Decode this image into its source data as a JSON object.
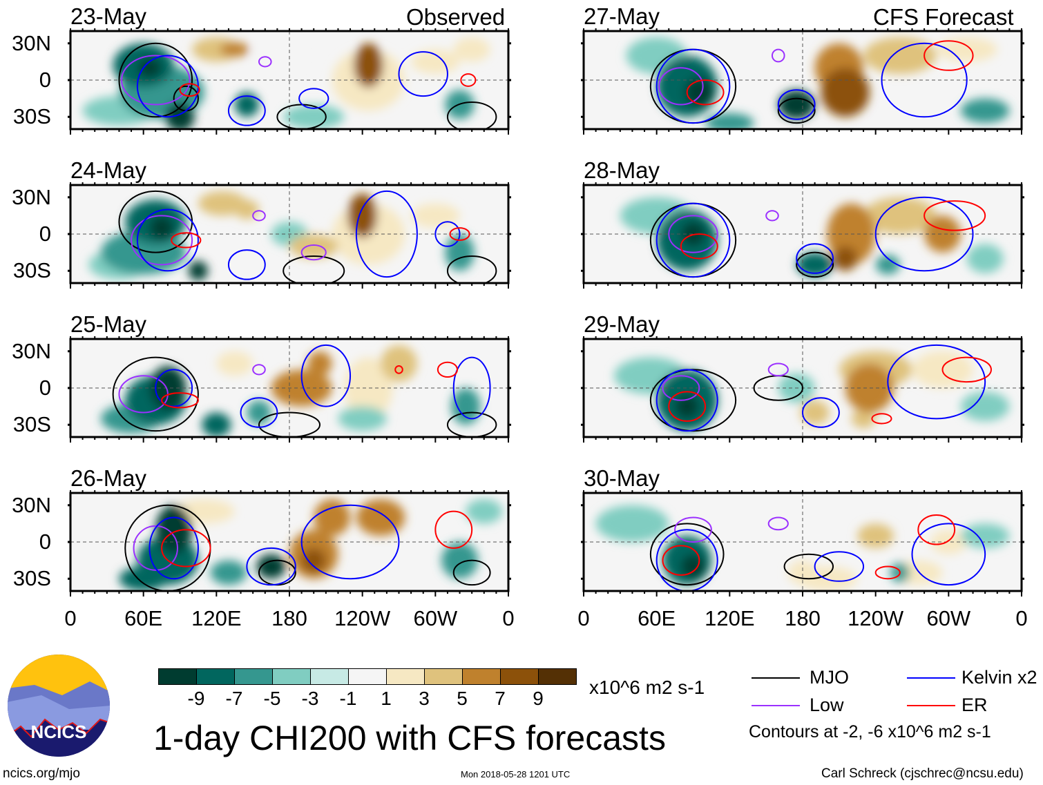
{
  "header": {
    "left_title": "Observed",
    "right_title": "CFS Forecast"
  },
  "lat_labels": [
    "30N",
    "0",
    "30S"
  ],
  "lon_labels": [
    "0",
    "60E",
    "120E",
    "180",
    "120W",
    "60W",
    "0"
  ],
  "panels": [
    {
      "date": "23-May",
      "column": "observed",
      "blobs": [
        [
          60,
          12,
          25,
          18,
          -7
        ],
        [
          75,
          -10,
          35,
          22,
          -5
        ],
        [
          65,
          10,
          10,
          8,
          -9
        ],
        [
          90,
          -30,
          12,
          12,
          -9
        ],
        [
          40,
          -25,
          30,
          12,
          -3
        ],
        [
          145,
          -20,
          10,
          10,
          -7
        ],
        [
          200,
          -30,
          25,
          10,
          -3
        ],
        [
          120,
          25,
          20,
          10,
          5
        ],
        [
          135,
          25,
          12,
          6,
          7
        ],
        [
          245,
          12,
          12,
          18,
          9
        ],
        [
          245,
          0,
          30,
          25,
          3
        ],
        [
          300,
          15,
          20,
          10,
          3
        ],
        [
          330,
          25,
          15,
          10,
          3
        ],
        [
          320,
          -20,
          12,
          12,
          -5
        ],
        [
          170,
          20,
          20,
          15,
          1
        ]
      ],
      "contours": [
        [
          70,
          0,
          30,
          30,
          "mjo"
        ],
        [
          95,
          -15,
          10,
          10,
          "mjo"
        ],
        [
          190,
          -30,
          20,
          10,
          "mjo"
        ],
        [
          330,
          -30,
          20,
          12,
          "mjo"
        ],
        [
          70,
          0,
          28,
          20,
          "low"
        ],
        [
          160,
          15,
          5,
          4,
          "low"
        ],
        [
          80,
          -5,
          25,
          25,
          "kelvin"
        ],
        [
          145,
          -25,
          15,
          12,
          "kelvin"
        ],
        [
          200,
          -15,
          12,
          8,
          "kelvin"
        ],
        [
          290,
          5,
          20,
          18,
          "kelvin"
        ],
        [
          98,
          -8,
          8,
          5,
          "er"
        ],
        [
          327,
          0,
          6,
          5,
          "er"
        ]
      ]
    },
    {
      "date": "24-May",
      "column": "observed",
      "blobs": [
        [
          70,
          10,
          25,
          18,
          -7
        ],
        [
          75,
          5,
          10,
          10,
          -9
        ],
        [
          60,
          -15,
          35,
          18,
          -5
        ],
        [
          105,
          -30,
          8,
          8,
          -9
        ],
        [
          40,
          -25,
          25,
          12,
          -3
        ],
        [
          125,
          25,
          20,
          10,
          5
        ],
        [
          145,
          20,
          10,
          8,
          5
        ],
        [
          200,
          -10,
          20,
          10,
          5
        ],
        [
          240,
          15,
          12,
          18,
          9
        ],
        [
          245,
          0,
          30,
          25,
          3
        ],
        [
          320,
          -15,
          12,
          15,
          -5
        ],
        [
          300,
          15,
          20,
          10,
          3
        ],
        [
          180,
          0,
          15,
          10,
          -3
        ]
      ],
      "contours": [
        [
          70,
          10,
          30,
          25,
          "mjo"
        ],
        [
          200,
          -30,
          25,
          12,
          "mjo"
        ],
        [
          330,
          -30,
          20,
          12,
          "mjo"
        ],
        [
          75,
          -5,
          25,
          20,
          "low"
        ],
        [
          155,
          15,
          5,
          4,
          "low"
        ],
        [
          200,
          -15,
          10,
          6,
          "low"
        ],
        [
          80,
          -5,
          25,
          25,
          "kelvin"
        ],
        [
          145,
          -25,
          15,
          12,
          "kelvin"
        ],
        [
          260,
          0,
          25,
          35,
          "kelvin"
        ],
        [
          310,
          0,
          10,
          10,
          "kelvin"
        ],
        [
          95,
          -5,
          12,
          6,
          "er"
        ],
        [
          320,
          0,
          8,
          5,
          "er"
        ]
      ]
    },
    {
      "date": "25-May",
      "column": "observed",
      "blobs": [
        [
          80,
          0,
          15,
          18,
          -9
        ],
        [
          70,
          -10,
          25,
          20,
          -7
        ],
        [
          50,
          -25,
          25,
          12,
          -5
        ],
        [
          120,
          -30,
          12,
          10,
          -7
        ],
        [
          155,
          -20,
          10,
          10,
          -5
        ],
        [
          135,
          20,
          15,
          10,
          3
        ],
        [
          190,
          0,
          25,
          15,
          7
        ],
        [
          205,
          20,
          10,
          10,
          7
        ],
        [
          270,
          20,
          15,
          15,
          5
        ],
        [
          245,
          0,
          20,
          25,
          3
        ],
        [
          325,
          -15,
          12,
          15,
          -5
        ],
        [
          240,
          -25,
          20,
          10,
          -3
        ]
      ],
      "contours": [
        [
          70,
          -5,
          35,
          30,
          "mjo"
        ],
        [
          180,
          -30,
          25,
          10,
          "mjo"
        ],
        [
          330,
          -30,
          20,
          10,
          "mjo"
        ],
        [
          60,
          -5,
          20,
          15,
          "low"
        ],
        [
          155,
          15,
          5,
          4,
          "low"
        ],
        [
          85,
          0,
          15,
          15,
          "kelvin"
        ],
        [
          155,
          -20,
          15,
          12,
          "kelvin"
        ],
        [
          210,
          10,
          20,
          25,
          "kelvin"
        ],
        [
          330,
          0,
          15,
          25,
          "kelvin"
        ],
        [
          90,
          -10,
          15,
          6,
          "er"
        ],
        [
          310,
          15,
          8,
          6,
          "er"
        ],
        [
          270,
          15,
          3,
          3,
          "er"
        ]
      ]
    },
    {
      "date": "26-May",
      "column": "observed",
      "blobs": [
        [
          85,
          10,
          15,
          20,
          -9
        ],
        [
          80,
          -15,
          25,
          20,
          -7
        ],
        [
          60,
          -30,
          20,
          10,
          -7
        ],
        [
          165,
          -20,
          12,
          10,
          -9
        ],
        [
          130,
          -25,
          15,
          10,
          -5
        ],
        [
          200,
          -10,
          20,
          20,
          7
        ],
        [
          200,
          -15,
          10,
          10,
          9
        ],
        [
          215,
          20,
          15,
          15,
          7
        ],
        [
          255,
          20,
          20,
          15,
          7
        ],
        [
          110,
          25,
          25,
          10,
          3
        ],
        [
          320,
          -15,
          15,
          15,
          -5
        ],
        [
          340,
          25,
          15,
          10,
          -3
        ]
      ],
      "contours": [
        [
          80,
          -5,
          35,
          35,
          "mjo"
        ],
        [
          170,
          -25,
          15,
          10,
          "mjo"
        ],
        [
          330,
          -25,
          15,
          10,
          "mjo"
        ],
        [
          70,
          -5,
          18,
          18,
          "low"
        ],
        [
          85,
          -5,
          20,
          25,
          "kelvin"
        ],
        [
          165,
          -20,
          20,
          15,
          "kelvin"
        ],
        [
          230,
          0,
          40,
          30,
          "kelvin"
        ],
        [
          95,
          -5,
          20,
          15,
          "er"
        ],
        [
          315,
          10,
          15,
          15,
          "er"
        ]
      ]
    },
    {
      "date": "27-May",
      "column": "forecast",
      "blobs": [
        [
          85,
          -5,
          25,
          25,
          -7
        ],
        [
          95,
          -10,
          12,
          12,
          -9
        ],
        [
          60,
          20,
          25,
          15,
          -3
        ],
        [
          175,
          -20,
          15,
          12,
          -9
        ],
        [
          215,
          -10,
          20,
          20,
          9
        ],
        [
          210,
          10,
          20,
          20,
          7
        ],
        [
          260,
          20,
          30,
          15,
          5
        ],
        [
          120,
          -35,
          20,
          8,
          -5
        ],
        [
          330,
          -25,
          20,
          10,
          -5
        ],
        [
          315,
          25,
          25,
          10,
          3
        ]
      ],
      "contours": [
        [
          90,
          -5,
          35,
          30,
          "mjo"
        ],
        [
          175,
          -25,
          15,
          10,
          "mjo"
        ],
        [
          80,
          -5,
          18,
          15,
          "low"
        ],
        [
          160,
          20,
          5,
          5,
          "low"
        ],
        [
          90,
          -5,
          30,
          30,
          "kelvin"
        ],
        [
          175,
          -20,
          15,
          12,
          "kelvin"
        ],
        [
          280,
          0,
          35,
          30,
          "kelvin"
        ],
        [
          100,
          -10,
          15,
          10,
          "er"
        ],
        [
          300,
          20,
          20,
          12,
          "er"
        ]
      ]
    },
    {
      "date": "28-May",
      "column": "forecast",
      "blobs": [
        [
          85,
          -5,
          25,
          25,
          -7
        ],
        [
          90,
          0,
          10,
          10,
          -9
        ],
        [
          60,
          15,
          30,
          15,
          -3
        ],
        [
          190,
          -25,
          15,
          10,
          -7
        ],
        [
          220,
          0,
          20,
          25,
          7
        ],
        [
          215,
          -20,
          10,
          10,
          9
        ],
        [
          260,
          15,
          30,
          15,
          5
        ],
        [
          295,
          0,
          15,
          15,
          7
        ],
        [
          250,
          -25,
          10,
          8,
          -5
        ],
        [
          330,
          -20,
          15,
          12,
          -3
        ]
      ],
      "contours": [
        [
          90,
          -5,
          35,
          30,
          "mjo"
        ],
        [
          190,
          -25,
          15,
          10,
          "mjo"
        ],
        [
          155,
          15,
          5,
          4,
          "low"
        ],
        [
          90,
          0,
          20,
          15,
          "low"
        ],
        [
          90,
          -5,
          30,
          30,
          "kelvin"
        ],
        [
          190,
          -20,
          15,
          12,
          "kelvin"
        ],
        [
          280,
          0,
          40,
          30,
          "kelvin"
        ],
        [
          95,
          -10,
          15,
          10,
          "er"
        ],
        [
          305,
          15,
          25,
          12,
          "er"
        ]
      ]
    },
    {
      "date": "29-May",
      "column": "forecast",
      "blobs": [
        [
          85,
          -10,
          25,
          25,
          -7
        ],
        [
          85,
          -15,
          10,
          10,
          -9
        ],
        [
          55,
          10,
          30,
          15,
          -3
        ],
        [
          175,
          0,
          15,
          12,
          -3
        ],
        [
          190,
          -20,
          12,
          10,
          5
        ],
        [
          235,
          0,
          20,
          20,
          7
        ],
        [
          240,
          15,
          30,
          15,
          5
        ],
        [
          295,
          15,
          25,
          15,
          3
        ],
        [
          230,
          -25,
          10,
          8,
          5
        ],
        [
          330,
          -15,
          20,
          12,
          -3
        ]
      ],
      "contours": [
        [
          90,
          -10,
          35,
          25,
          "mjo"
        ],
        [
          160,
          0,
          20,
          10,
          "mjo"
        ],
        [
          160,
          15,
          8,
          5,
          "low"
        ],
        [
          80,
          0,
          15,
          10,
          "low"
        ],
        [
          85,
          -10,
          25,
          25,
          "kelvin"
        ],
        [
          195,
          -20,
          15,
          12,
          "kelvin"
        ],
        [
          290,
          5,
          40,
          30,
          "kelvin"
        ],
        [
          85,
          -15,
          15,
          12,
          "er"
        ],
        [
          245,
          -25,
          8,
          4,
          "er"
        ],
        [
          315,
          15,
          20,
          10,
          "er"
        ]
      ]
    },
    {
      "date": "30-May",
      "column": "forecast",
      "blobs": [
        [
          85,
          -15,
          20,
          20,
          -7
        ],
        [
          90,
          -20,
          10,
          10,
          -9
        ],
        [
          40,
          15,
          30,
          15,
          -3
        ],
        [
          180,
          -25,
          12,
          10,
          3
        ],
        [
          240,
          5,
          15,
          10,
          5
        ],
        [
          300,
          0,
          15,
          10,
          3
        ],
        [
          260,
          -25,
          8,
          8,
          -5
        ],
        [
          200,
          -30,
          25,
          10,
          3
        ],
        [
          330,
          5,
          20,
          10,
          -3
        ],
        [
          275,
          -25,
          20,
          10,
          3
        ]
      ],
      "contours": [
        [
          85,
          -10,
          30,
          25,
          "mjo"
        ],
        [
          185,
          -20,
          20,
          10,
          "mjo"
        ],
        [
          90,
          10,
          15,
          10,
          "low"
        ],
        [
          160,
          15,
          8,
          5,
          "low"
        ],
        [
          85,
          -15,
          25,
          25,
          "kelvin"
        ],
        [
          210,
          -20,
          20,
          12,
          "kelvin"
        ],
        [
          300,
          -10,
          30,
          25,
          "kelvin"
        ],
        [
          80,
          -15,
          15,
          12,
          "er"
        ],
        [
          250,
          -25,
          10,
          5,
          "er"
        ],
        [
          290,
          10,
          15,
          12,
          "er"
        ]
      ]
    }
  ],
  "colorbar": {
    "levels": [
      "-9",
      "-7",
      "-5",
      "-3",
      "-1",
      "1",
      "3",
      "5",
      "7",
      "9"
    ],
    "colors": [
      "#003c30",
      "#01665e",
      "#35978f",
      "#80cdc1",
      "#c7eae5",
      "#f5f5f5",
      "#f6e8c3",
      "#dfc27d",
      "#bf812d",
      "#8c510a",
      "#543005"
    ],
    "units": "x10^6 m2 s-1"
  },
  "legend": {
    "items": [
      {
        "label": "MJO",
        "color": "#000000"
      },
      {
        "label": "Kelvin x2",
        "color": "#0000ff"
      },
      {
        "label": "Low",
        "color": "#9b30ff"
      },
      {
        "label": "ER",
        "color": "#ff0000"
      }
    ],
    "note": "Contours at -2, -6 x10^6 m2 s-1"
  },
  "title": "1-day CHI200 with CFS forecasts",
  "logo": {
    "text": "NCICS"
  },
  "footer": {
    "url": "ncics.org/mjo",
    "timestamp": "Mon 2018-05-28 1201 UTC",
    "author": "Carl Schreck (cjschrec@ncsu.edu)"
  }
}
